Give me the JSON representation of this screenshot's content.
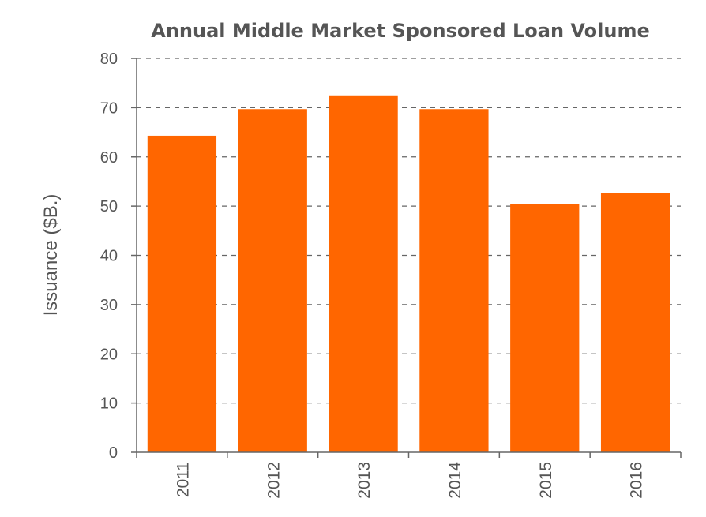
{
  "chart_data": {
    "type": "bar",
    "title": "Annual Middle Market Sponsored Loan Volume",
    "xlabel": "",
    "ylabel": "Issuance ($B.)",
    "categories": [
      "2011",
      "2012",
      "2013",
      "2014",
      "2015",
      "2016"
    ],
    "values": [
      64.3,
      69.7,
      72.5,
      69.7,
      50.4,
      52.6
    ],
    "ylim": [
      0,
      80
    ],
    "yticks": [
      0,
      10,
      20,
      30,
      40,
      50,
      60,
      70,
      80
    ],
    "grid": true,
    "legend": "none",
    "bar_color": "#FF6600",
    "text_color": "#555555",
    "axis_color": "#666666"
  }
}
